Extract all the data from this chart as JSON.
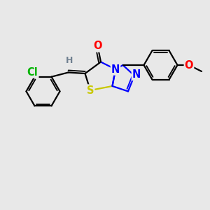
{
  "background_color": "#e8e8e8",
  "atoms": {
    "O": {
      "color": "#ff0000"
    },
    "N": {
      "color": "#0000ff"
    },
    "S": {
      "color": "#c8c800"
    },
    "Cl": {
      "color": "#00b400"
    },
    "H": {
      "color": "#708090"
    }
  },
  "bond_color": "#000000",
  "bond_width": 1.6,
  "font_size": 10.5,
  "figsize": [
    3.0,
    3.0
  ],
  "dpi": 100,
  "xlim": [
    0,
    10
  ],
  "ylim": [
    0,
    10
  ]
}
